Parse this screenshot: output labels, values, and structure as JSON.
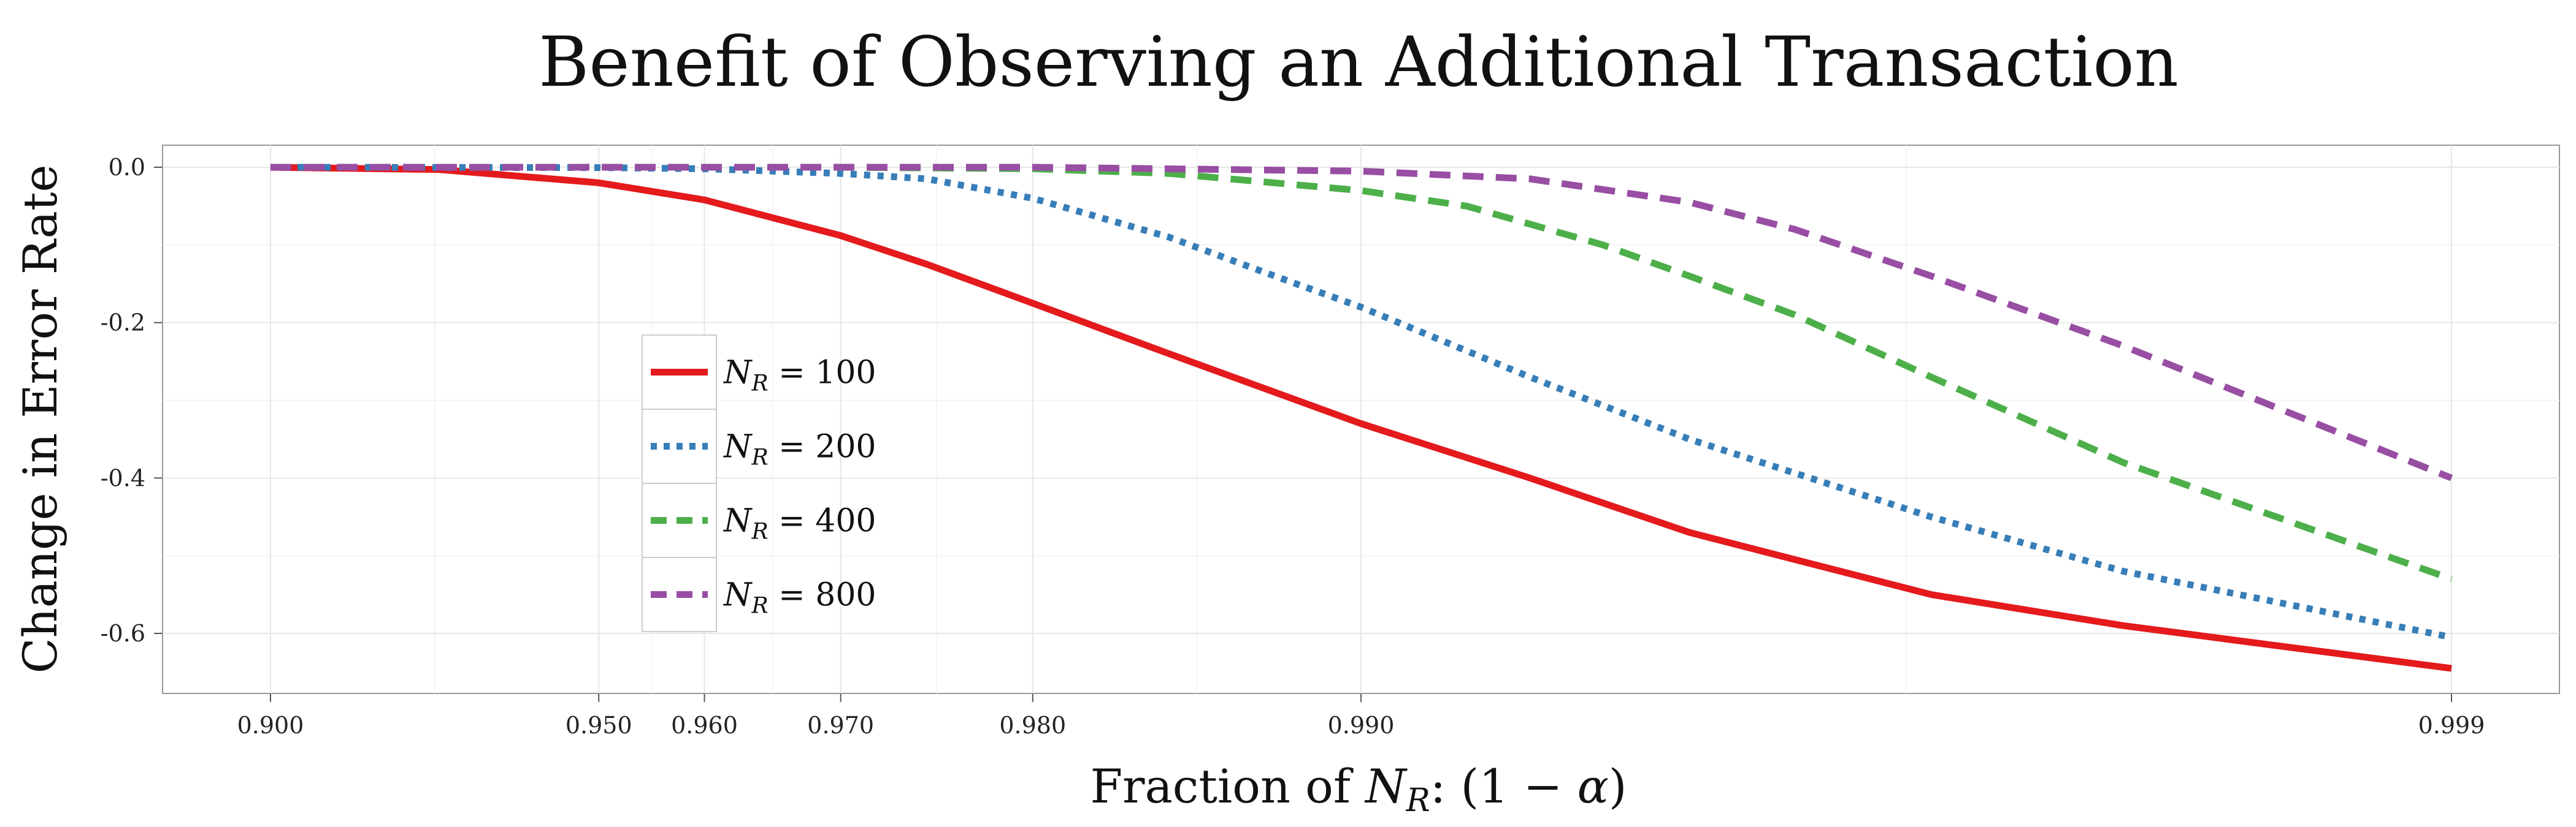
{
  "chart_data": {
    "type": "line",
    "title": "Benefit of Observing an Additional Transaction",
    "xlabel": "Fraction of N_R: (1 − α)",
    "xlabel_parts": {
      "prefix": "Fraction of ",
      "var": "N",
      "sub": "R",
      "suffix": ": (1 − ",
      "alpha": "α",
      "close": ")"
    },
    "ylabel": "Change in Error Rate",
    "x_ticks": [
      {
        "value": 0.9,
        "label": "0.900"
      },
      {
        "value": 0.95,
        "label": "0.950"
      },
      {
        "value": 0.96,
        "label": "0.960"
      },
      {
        "value": 0.97,
        "label": "0.970"
      },
      {
        "value": 0.98,
        "label": "0.980"
      },
      {
        "value": 0.99,
        "label": "0.990"
      },
      {
        "value": 0.999,
        "label": "0.999"
      }
    ],
    "y_ticks": [
      {
        "value": 0.0,
        "label": "0.0"
      },
      {
        "value": -0.2,
        "label": "-0.2"
      },
      {
        "value": -0.4,
        "label": "-0.4"
      },
      {
        "value": -0.6,
        "label": "-0.6"
      }
    ],
    "x_scale": "log(1 - x)",
    "xlim": [
      0.895,
      0.9992
    ],
    "ylim": [
      -0.68,
      0.03
    ],
    "grid": true,
    "legend_position": "left-center",
    "series": [
      {
        "name": "N_R = 100",
        "legend_var": "N",
        "legend_sub": "R",
        "legend_rhs": " = 100",
        "color": "#e41a1c",
        "dash": "solid",
        "points": [
          [
            0.9,
            -0.0001
          ],
          [
            0.93,
            -0.003
          ],
          [
            0.95,
            -0.02
          ],
          [
            0.96,
            -0.042
          ],
          [
            0.97,
            -0.088
          ],
          [
            0.975,
            -0.125
          ],
          [
            0.98,
            -0.175
          ],
          [
            0.985,
            -0.24
          ],
          [
            0.99,
            -0.33
          ],
          [
            0.993,
            -0.4
          ],
          [
            0.995,
            -0.47
          ],
          [
            0.997,
            -0.55
          ],
          [
            0.998,
            -0.59
          ],
          [
            0.999,
            -0.645
          ]
        ]
      },
      {
        "name": "N_R = 200",
        "legend_var": "N",
        "legend_sub": "R",
        "legend_rhs": " = 200",
        "color": "#377eb8",
        "dash": "dotted",
        "points": [
          [
            0.9,
            0.0
          ],
          [
            0.95,
            -0.0005
          ],
          [
            0.96,
            -0.002
          ],
          [
            0.97,
            -0.008
          ],
          [
            0.975,
            -0.015
          ],
          [
            0.98,
            -0.04
          ],
          [
            0.985,
            -0.09
          ],
          [
            0.988,
            -0.14
          ],
          [
            0.99,
            -0.18
          ],
          [
            0.993,
            -0.27
          ],
          [
            0.995,
            -0.35
          ],
          [
            0.997,
            -0.45
          ],
          [
            0.998,
            -0.52
          ],
          [
            0.999,
            -0.605
          ]
        ]
      },
      {
        "name": "N_R = 400",
        "legend_var": "N",
        "legend_sub": "R",
        "legend_rhs": " = 400",
        "color": "#4daf4a",
        "dash": "dashed",
        "points": [
          [
            0.9,
            0.0
          ],
          [
            0.97,
            0.0
          ],
          [
            0.98,
            -0.002
          ],
          [
            0.985,
            -0.008
          ],
          [
            0.99,
            -0.03
          ],
          [
            0.992,
            -0.05
          ],
          [
            0.994,
            -0.1
          ],
          [
            0.995,
            -0.14
          ],
          [
            0.996,
            -0.19
          ],
          [
            0.997,
            -0.27
          ],
          [
            0.998,
            -0.38
          ],
          [
            0.999,
            -0.53
          ]
        ]
      },
      {
        "name": "N_R = 800",
        "legend_var": "N",
        "legend_sub": "R",
        "legend_rhs": " = 800",
        "color": "#984ea3",
        "dash": "dashed",
        "points": [
          [
            0.9,
            0.0
          ],
          [
            0.98,
            0.0
          ],
          [
            0.99,
            -0.005
          ],
          [
            0.993,
            -0.015
          ],
          [
            0.995,
            -0.045
          ],
          [
            0.996,
            -0.08
          ],
          [
            0.997,
            -0.14
          ],
          [
            0.998,
            -0.23
          ],
          [
            0.999,
            -0.4
          ]
        ]
      }
    ]
  }
}
